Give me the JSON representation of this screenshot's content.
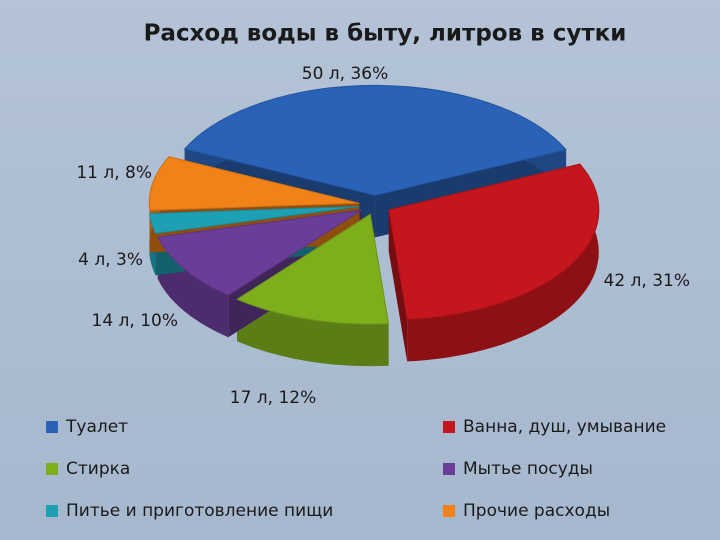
{
  "chart_data": {
    "type": "pie",
    "title": "Расход воды в быту, литров в сутки",
    "categories": [
      "Туалет",
      "Ванна, душ, умывание",
      "Стирка",
      "Мытье посуды",
      "Питье и приготовление пищи",
      "Прочие расходы"
    ],
    "values": [
      50,
      42,
      17,
      14,
      4,
      11
    ],
    "value_labels": [
      "50 л, 36%",
      "42 л, 31%",
      "17 л, 12%",
      "14 л, 10%",
      "4 л, 3%",
      "11 л, 8%"
    ],
    "colors": [
      "#2a62b8",
      "#c4161c",
      "#7fae1d",
      "#6a3d98",
      "#1ea0b4",
      "#f08218"
    ],
    "legend": "bottom"
  }
}
